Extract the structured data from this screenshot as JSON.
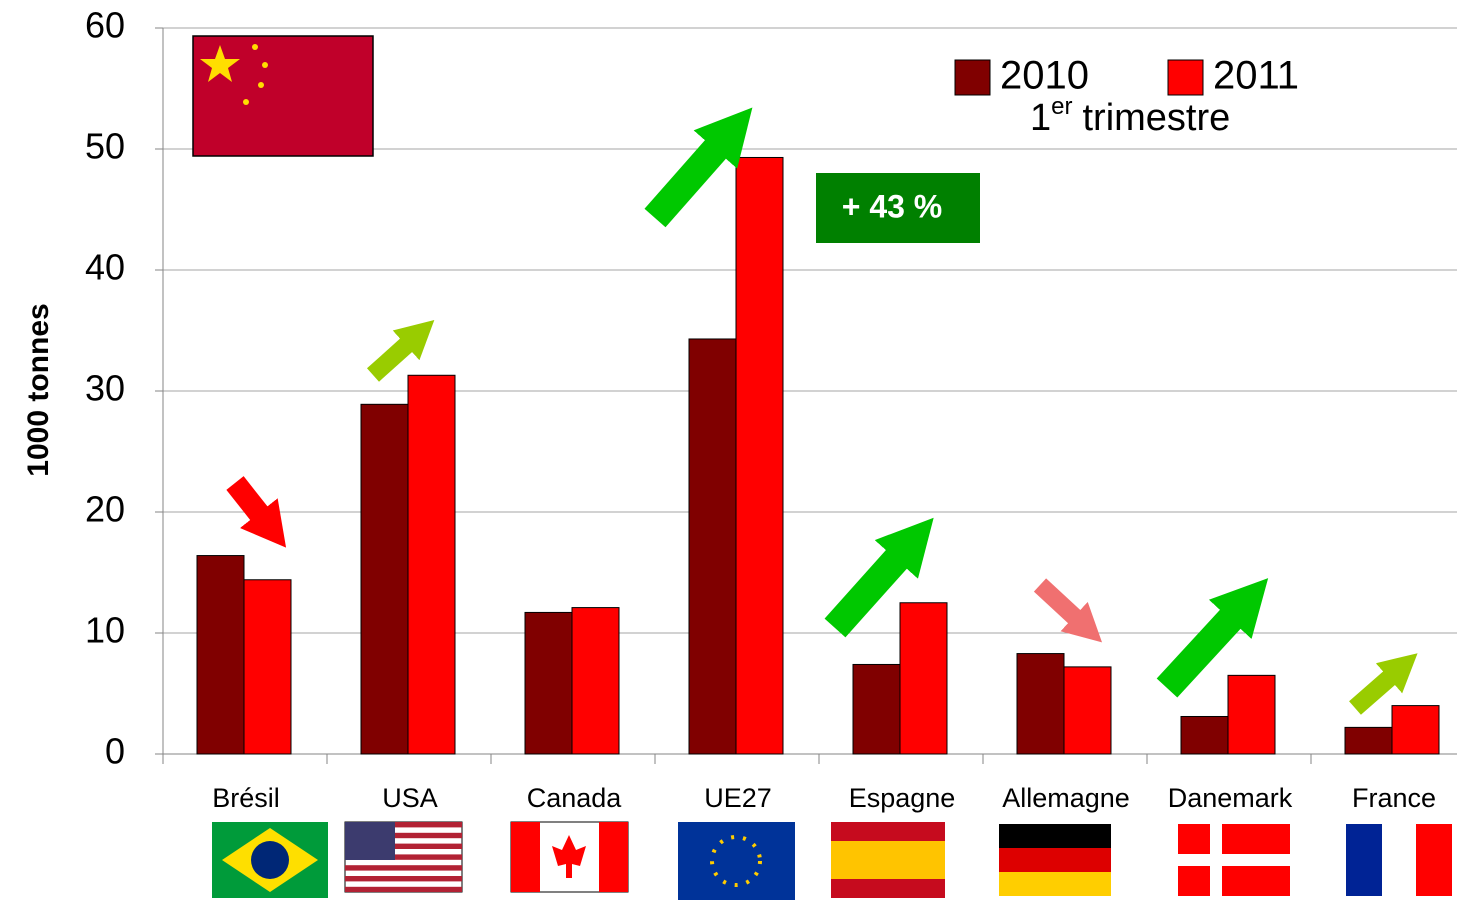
{
  "chart_data": {
    "type": "bar",
    "y_label": "1000 tonnes",
    "categories": [
      "Brésil",
      "USA",
      "Canada",
      "UE27",
      "Espagne",
      "Allemagne",
      "Danemark",
      "France"
    ],
    "series": [
      {
        "name": "2010",
        "color": "#800000",
        "values": [
          16.4,
          28.9,
          11.7,
          34.3,
          7.4,
          8.3,
          3.1,
          2.2
        ]
      },
      {
        "name": "2011",
        "color": "#ff0000",
        "values": [
          14.4,
          31.3,
          12.1,
          49.3,
          12.5,
          7.2,
          6.5,
          4.0
        ]
      }
    ],
    "legend_note": [
      "1",
      "er",
      "trimestre"
    ],
    "annotation": "+ 43 %",
    "ylim": [
      0,
      60
    ],
    "yticks": [
      0,
      10,
      20,
      30,
      40,
      50,
      60
    ],
    "grid": true
  }
}
